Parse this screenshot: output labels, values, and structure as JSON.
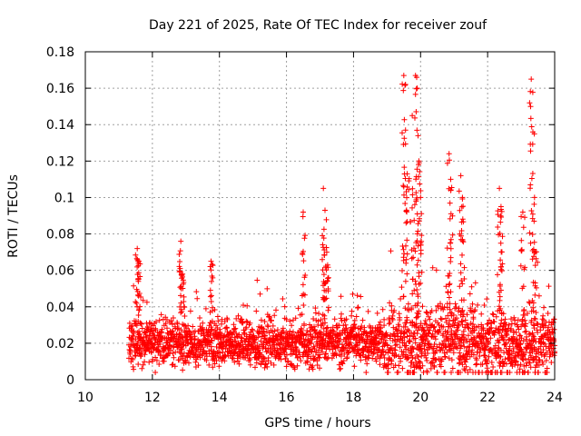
{
  "chart_data": {
    "type": "scatter",
    "title": "Day 221 of 2025, Rate Of TEC Index for receiver zouf",
    "xlabel": "GPS time / hours",
    "ylabel": "ROTI / TECUs",
    "xlim": [
      10,
      24
    ],
    "ylim": [
      0,
      0.18
    ],
    "x_ticks": [
      10,
      12,
      14,
      16,
      18,
      20,
      22,
      24
    ],
    "y_ticks": [
      0,
      0.02,
      0.04,
      0.06,
      0.08,
      0.1,
      0.12,
      0.14,
      0.16,
      0.18
    ],
    "x_tick_labels": [
      "10",
      "12",
      "14",
      "16",
      "18",
      "20",
      "22",
      "24"
    ],
    "y_tick_labels": [
      "0",
      "0.02",
      "0.04",
      "0.06",
      "0.08",
      "0.1",
      "0.12",
      "0.14",
      "0.16",
      "0.18"
    ],
    "grid": true,
    "marker": "+",
    "marker_color": "#ff0000",
    "series": [
      {
        "name": "ROTI",
        "x_range": [
          11.3,
          24.0
        ],
        "baseline": 0.02,
        "spikes": [
          {
            "x": 11.55,
            "y": 0.072
          },
          {
            "x": 11.6,
            "y": 0.065
          },
          {
            "x": 12.85,
            "y": 0.076
          },
          {
            "x": 12.9,
            "y": 0.058
          },
          {
            "x": 13.75,
            "y": 0.065
          },
          {
            "x": 16.5,
            "y": 0.092
          },
          {
            "x": 17.1,
            "y": 0.105
          },
          {
            "x": 17.15,
            "y": 0.093
          },
          {
            "x": 17.2,
            "y": 0.07
          },
          {
            "x": 19.5,
            "y": 0.167
          },
          {
            "x": 19.55,
            "y": 0.137
          },
          {
            "x": 19.6,
            "y": 0.113
          },
          {
            "x": 19.75,
            "y": 0.145
          },
          {
            "x": 19.85,
            "y": 0.167
          },
          {
            "x": 19.9,
            "y": 0.16
          },
          {
            "x": 19.95,
            "y": 0.12
          },
          {
            "x": 20.0,
            "y": 0.1
          },
          {
            "x": 20.85,
            "y": 0.124
          },
          {
            "x": 20.9,
            "y": 0.11
          },
          {
            "x": 21.2,
            "y": 0.112
          },
          {
            "x": 21.25,
            "y": 0.1
          },
          {
            "x": 22.35,
            "y": 0.105
          },
          {
            "x": 22.4,
            "y": 0.095
          },
          {
            "x": 23.05,
            "y": 0.092
          },
          {
            "x": 23.3,
            "y": 0.165
          },
          {
            "x": 23.35,
            "y": 0.136
          },
          {
            "x": 23.4,
            "y": 0.1
          }
        ]
      }
    ]
  }
}
